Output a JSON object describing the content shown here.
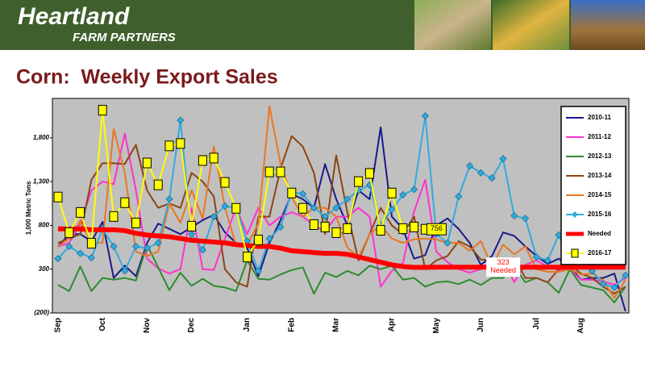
{
  "header": {
    "brand": "Heartland",
    "tagline": "FARM PARTNERS"
  },
  "chart_data": {
    "type": "line",
    "title": "Corn:  Weekly Export Sales",
    "y_label": "1,000 Metric Tons",
    "categories": [
      "Sep",
      null,
      null,
      null,
      "Oct",
      null,
      null,
      null,
      "Nov",
      null,
      null,
      null,
      "Dec",
      null,
      null,
      null,
      null,
      "Jan",
      null,
      null,
      null,
      "Feb",
      null,
      null,
      null,
      "Mar",
      null,
      null,
      null,
      null,
      "Apr",
      null,
      null,
      null,
      "May",
      null,
      null,
      null,
      "Jun",
      null,
      null,
      null,
      null,
      "Jul",
      null,
      null,
      null,
      "Aug",
      null,
      null,
      null,
      null
    ],
    "ylim": [
      -200,
      2250
    ],
    "yticks": [
      {
        "value": -200,
        "label": "(200)"
      },
      300,
      800,
      {
        "value": 1300,
        "label": "1,300"
      },
      {
        "value": 1800,
        "label": "1,800"
      }
    ],
    "background": "#c0c0c0",
    "grid": false,
    "legend": "right",
    "series": [
      {
        "name": "2010-11",
        "color": "#1a1a8c",
        "values": [
          560,
          700,
          700,
          620,
          840,
          200,
          340,
          220,
          600,
          820,
          760,
          700,
          780,
          860,
          920,
          720,
          600,
          540,
          220,
          600,
          860,
          1160,
          1100,
          1000,
          1500,
          1100,
          800,
          1200,
          1100,
          1920,
          900,
          760,
          420,
          460,
          800,
          880,
          760,
          600,
          350,
          450,
          720,
          680,
          560,
          450,
          360,
          420,
          330,
          180,
          200,
          200,
          250,
          -180
        ]
      },
      {
        "name": "2011-12",
        "color": "#ff33cc",
        "values": [
          560,
          600,
          820,
          1200,
          1300,
          1270,
          1850,
          1200,
          420,
          310,
          250,
          300,
          1000,
          300,
          290,
          650,
          1000,
          700,
          1000,
          800,
          900,
          950,
          900,
          800,
          730,
          900,
          900,
          1000,
          900,
          100,
          280,
          370,
          960,
          1320,
          500,
          380,
          300,
          260,
          300,
          350,
          400,
          150,
          350,
          400,
          330,
          290,
          300,
          180,
          180,
          160,
          120,
          200
        ]
      },
      {
        "name": "2012-13",
        "color": "#2e8b2e",
        "values": [
          120,
          50,
          330,
          50,
          200,
          180,
          200,
          170,
          580,
          320,
          60,
          260,
          110,
          190,
          110,
          90,
          50,
          400,
          190,
          180,
          240,
          290,
          320,
          20,
          260,
          210,
          280,
          230,
          340,
          300,
          340,
          180,
          200,
          100,
          150,
          160,
          130,
          180,
          120,
          200,
          200,
          330,
          150,
          200,
          150,
          30,
          300,
          120,
          90,
          60,
          -80,
          100
        ]
      },
      {
        "name": "2013-14",
        "color": "#8b4513",
        "values": [
          600,
          650,
          700,
          1320,
          1510,
          1510,
          1500,
          1720,
          1200,
          1000,
          1050,
          1000,
          1400,
          1300,
          1130,
          300,
          150,
          100,
          900,
          900,
          1450,
          1820,
          1700,
          1400,
          700,
          1600,
          950,
          400,
          700,
          1000,
          800,
          700,
          900,
          300,
          400,
          450,
          620,
          560,
          410,
          400,
          400,
          430,
          200,
          200,
          150,
          300,
          350,
          250,
          200,
          100,
          20,
          100
        ]
      },
      {
        "name": "2014-15",
        "color": "#e87722",
        "values": [
          560,
          650,
          850,
          600,
          600,
          1900,
          1400,
          500,
          450,
          500,
          1050,
          830,
          1200,
          880,
          1700,
          1000,
          570,
          580,
          820,
          2160,
          1500,
          1120,
          900,
          1000,
          1000,
          900,
          550,
          430,
          700,
          800,
          650,
          600,
          640,
          650,
          640,
          600,
          600,
          510,
          620,
          330,
          580,
          470,
          560,
          300,
          270,
          270,
          300,
          240,
          250,
          170,
          -30,
          180
        ]
      },
      {
        "name": "2015-16",
        "color": "#33aadd",
        "marker": "diamond",
        "values": [
          420,
          560,
          480,
          430,
          760,
          560,
          280,
          560,
          540,
          600,
          1100,
          2000,
          700,
          520,
          900,
          1020,
          1000,
          620,
          280,
          650,
          780,
          1180,
          1160,
          1000,
          900,
          1000,
          1100,
          1200,
          1260,
          800,
          980,
          1150,
          1210,
          2050,
          700,
          600,
          1130,
          1480,
          1400,
          1340,
          1560,
          910,
          880,
          440,
          400,
          690,
          360,
          340,
          280,
          130,
          90,
          230
        ]
      },
      {
        "name": "Needed",
        "color": "#ff0000",
        "line_width": 6,
        "values": [
          760,
          760,
          760,
          750,
          750,
          750,
          740,
          710,
          690,
          680,
          670,
          650,
          630,
          620,
          610,
          600,
          580,
          570,
          560,
          560,
          540,
          510,
          500,
          490,
          480,
          480,
          470,
          440,
          410,
          380,
          350,
          330,
          320,
          320,
          323,
          323,
          323,
          323,
          323,
          323,
          323,
          323,
          323,
          323,
          323,
          323,
          323,
          323,
          323,
          323,
          323,
          323
        ],
        "value_labels": [
          null,
          null,
          null,
          null,
          null,
          null,
          null,
          null,
          null,
          null,
          null,
          null,
          null,
          null,
          null,
          null,
          null,
          null,
          null,
          null,
          null,
          null,
          null,
          null,
          null,
          null,
          null,
          null,
          null,
          null,
          null,
          null,
          null,
          null,
          null,
          null,
          null,
          null,
          null,
          "323 Needed",
          null,
          null,
          null,
          null,
          null,
          null,
          null,
          null,
          null,
          null,
          null,
          null
        ]
      },
      {
        "name": "2016-17",
        "color": "#ffff00",
        "marker": "square",
        "values": [
          1124,
          717,
          948,
          596,
          2115,
          902,
          1059,
          828,
          1513,
          1263,
          1708,
          1735,
          791,
          1541,
          1569,
          1291,
          995,
          439,
          633,
          1411,
          1411,
          1170,
          995,
          809,
          782,
          717,
          763,
          1300,
          1393,
          744,
          1170,
          763,
          782,
          756,
          null,
          null,
          null,
          null,
          null,
          null,
          null,
          null,
          null,
          null,
          null,
          null,
          null,
          null,
          null,
          null,
          null,
          null
        ],
        "value_labels": [
          null,
          null,
          null,
          null,
          null,
          null,
          null,
          null,
          null,
          null,
          null,
          null,
          null,
          null,
          null,
          null,
          null,
          null,
          null,
          null,
          null,
          null,
          null,
          null,
          null,
          null,
          null,
          null,
          null,
          null,
          null,
          null,
          null,
          "756",
          null,
          null,
          null,
          null,
          null,
          null,
          null,
          null,
          null,
          null,
          null,
          null,
          null,
          null,
          null,
          null,
          null,
          null
        ]
      }
    ]
  }
}
